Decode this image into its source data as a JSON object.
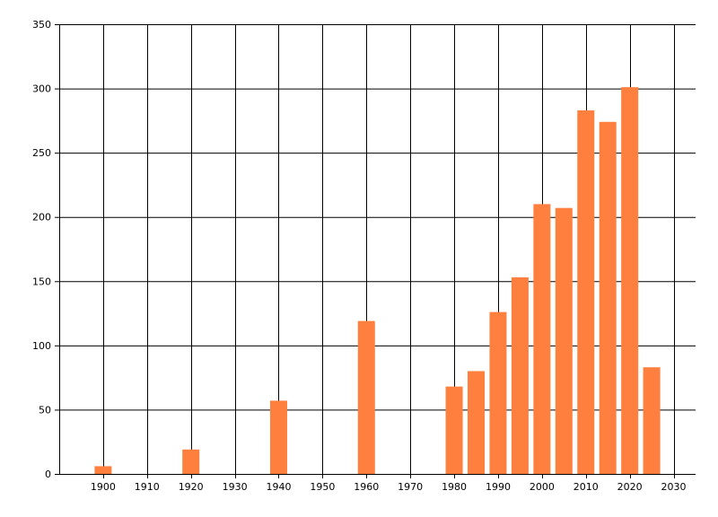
{
  "chart_data": {
    "type": "bar",
    "title": "",
    "xlabel": "",
    "ylabel": "",
    "x": [
      1900,
      1920,
      1940,
      1960,
      1980,
      1985,
      1990,
      1995,
      2000,
      2005,
      2010,
      2015,
      2020,
      2025
    ],
    "values": [
      6,
      19,
      57,
      119,
      68,
      80,
      126,
      153,
      210,
      207,
      283,
      274,
      301,
      83
    ],
    "xlim": [
      1890,
      2035
    ],
    "ylim": [
      0,
      350
    ],
    "xticks": [
      1900,
      1910,
      1920,
      1930,
      1940,
      1950,
      1960,
      1970,
      1980,
      1990,
      2000,
      2010,
      2020,
      2030
    ],
    "yticks": [
      0,
      50,
      100,
      150,
      200,
      250,
      300,
      350
    ],
    "grid": true,
    "bar_color": "#ff7f3f",
    "grid_color": "#000000"
  }
}
